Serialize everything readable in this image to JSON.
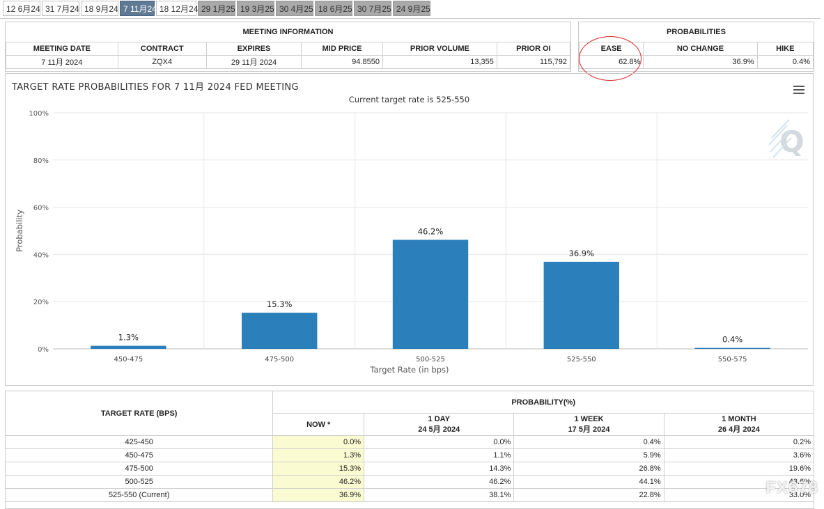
{
  "tabs": [
    {
      "label": "12 6月24",
      "state": "normal"
    },
    {
      "label": "31 7月24",
      "state": "normal"
    },
    {
      "label": "18 9月24",
      "state": "normal"
    },
    {
      "label": "7 11月24",
      "state": "active"
    },
    {
      "label": "18 12月24",
      "state": "normal"
    },
    {
      "label": "29 1月25",
      "state": "dim"
    },
    {
      "label": "19 3月25",
      "state": "dim"
    },
    {
      "label": "30 4月25",
      "state": "dim"
    },
    {
      "label": "18 6月25",
      "state": "dim"
    },
    {
      "label": "30 7月25",
      "state": "dim"
    },
    {
      "label": "24 9月25",
      "state": "dim"
    }
  ],
  "meeting_info": {
    "title": "MEETING INFORMATION",
    "headers": [
      "MEETING DATE",
      "CONTRACT",
      "EXPIRES",
      "MID PRICE",
      "PRIOR VOLUME",
      "PRIOR OI"
    ],
    "values": [
      "7 11月 2024",
      "ZQX4",
      "29 11月 2024",
      "94.8550",
      "13,355",
      "115,792"
    ]
  },
  "probabilities": {
    "title": "PROBABILITIES",
    "headers": [
      "EASE",
      "NO CHANGE",
      "HIKE"
    ],
    "values": [
      "62.8%",
      "36.9%",
      "0.4%"
    ]
  },
  "chart": {
    "title": "TARGET RATE PROBABILITIES FOR 7 11月 2024 FED MEETING",
    "subtitle": "Current target rate is 525-550"
  },
  "chart_data": {
    "type": "bar",
    "categories": [
      "450-475",
      "475-500",
      "500-525",
      "525-550",
      "550-575"
    ],
    "values": [
      1.3,
      15.3,
      46.2,
      36.9,
      0.4
    ],
    "data_labels": [
      "1.3%",
      "15.3%",
      "46.2%",
      "36.9%",
      "0.4%"
    ],
    "xlabel": "Target Rate (in bps)",
    "ylabel": "Probability",
    "ylim": [
      0,
      100
    ],
    "yticks": [
      "0%",
      "20%",
      "40%",
      "60%",
      "80%",
      "100%"
    ],
    "grid": true,
    "bar_color": "#2b7fba"
  },
  "prob_table": {
    "header_left": "TARGET RATE (BPS)",
    "header_group": "PROBABILITY(%)",
    "columns": [
      {
        "line1": "NOW *",
        "line2": ""
      },
      {
        "line1": "1 DAY",
        "line2": "24 5月 2024"
      },
      {
        "line1": "1 WEEK",
        "line2": "17 5月 2024"
      },
      {
        "line1": "1 MONTH",
        "line2": "26 4月 2024"
      }
    ],
    "rows": [
      {
        "rate": "425-450",
        "now": "0.0%",
        "day": "0.0%",
        "week": "0.4%",
        "month": "0.2%"
      },
      {
        "rate": "450-475",
        "now": "1.3%",
        "day": "1.1%",
        "week": "5.9%",
        "month": "3.6%"
      },
      {
        "rate": "475-500",
        "now": "15.3%",
        "day": "14.3%",
        "week": "26.8%",
        "month": "19.6%"
      },
      {
        "rate": "500-525",
        "now": "46.2%",
        "day": "46.2%",
        "week": "44.1%",
        "month": "43.6%"
      },
      {
        "rate": "525-550 (Current)",
        "now": "36.9%",
        "day": "38.1%",
        "week": "22.8%",
        "month": "33.0%"
      }
    ]
  },
  "watermark": "FX678",
  "highlight_color": "#d9262a"
}
